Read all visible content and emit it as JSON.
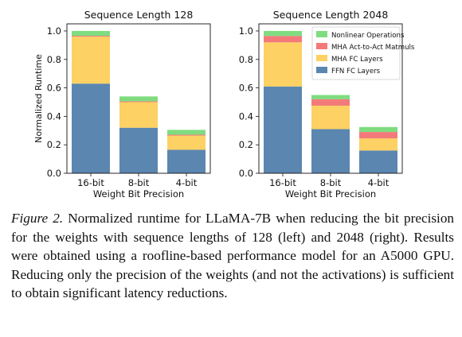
{
  "figure": {
    "caption_label": "Figure 2.",
    "caption_text": "Normalized runtime for LLaMA-7B when reducing the bit precision for the weights with sequence lengths of 128 (left) and 2048 (right). Results were obtained using a roofline-based performance model for an A5000 GPU. Reducing only the precision of the weights (and not the activations) is sufficient to obtain significant latency reductions."
  },
  "colors": {
    "FFN FC Layers": "#5b86b0",
    "MHA FC Layers": "#fdd163",
    "MHA Act-to-Act Matmuls": "#f47a7a",
    "Nonlinear Operations": "#7fdc7f"
  },
  "chart_data": [
    {
      "type": "bar",
      "stacked": true,
      "title": "Sequence Length 128",
      "xlabel": "Weight Bit Precision",
      "ylabel": "Normalized Runtime",
      "categories": [
        "16-bit",
        "8-bit",
        "4-bit"
      ],
      "ylim": [
        0,
        1.05
      ],
      "yticks": [
        "0.0",
        "0.2",
        "0.4",
        "0.6",
        "0.8",
        "1.0"
      ],
      "legend": false,
      "series": [
        {
          "name": "FFN FC Layers",
          "values": [
            0.63,
            0.32,
            0.165
          ]
        },
        {
          "name": "MHA FC Layers",
          "values": [
            0.33,
            0.18,
            0.1
          ]
        },
        {
          "name": "MHA Act-to-Act Matmuls",
          "values": [
            0.006,
            0.006,
            0.006
          ]
        },
        {
          "name": "Nonlinear Operations",
          "values": [
            0.034,
            0.034,
            0.034
          ]
        }
      ]
    },
    {
      "type": "bar",
      "stacked": true,
      "title": "Sequence Length 2048",
      "xlabel": "Weight Bit Precision",
      "ylabel": "",
      "categories": [
        "16-bit",
        "8-bit",
        "4-bit"
      ],
      "ylim": [
        0,
        1.05
      ],
      "yticks": [
        "0.0",
        "0.2",
        "0.4",
        "0.6",
        "0.8",
        "1.0"
      ],
      "legend": "top-right",
      "series": [
        {
          "name": "FFN FC Layers",
          "values": [
            0.61,
            0.31,
            0.16
          ]
        },
        {
          "name": "MHA FC Layers",
          "values": [
            0.31,
            0.165,
            0.085
          ]
        },
        {
          "name": "MHA Act-to-Act Matmuls",
          "values": [
            0.045,
            0.045,
            0.045
          ]
        },
        {
          "name": "Nonlinear Operations",
          "values": [
            0.035,
            0.03,
            0.035
          ]
        }
      ]
    }
  ]
}
